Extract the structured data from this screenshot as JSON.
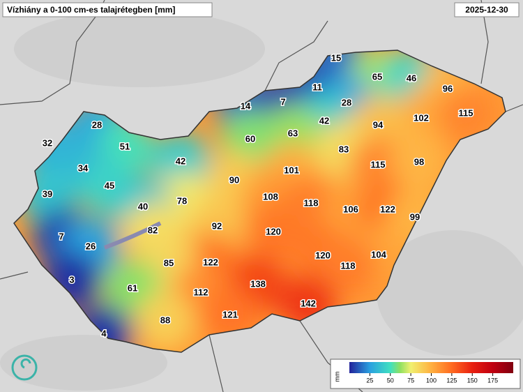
{
  "header": {
    "title": "Vízhiány a 0-100 cm-es talajrétegben [mm]",
    "date": "2025-12-30"
  },
  "map": {
    "points": [
      15,
      65,
      46,
      11,
      96,
      14,
      7,
      28,
      102,
      115,
      42,
      94,
      28,
      63,
      60,
      32,
      51,
      83,
      42,
      115,
      98,
      34,
      101,
      90,
      45,
      39,
      108,
      118,
      78,
      106,
      122,
      40,
      99,
      92,
      82,
      120,
      7,
      26,
      120,
      104,
      122,
      85,
      118,
      3,
      61,
      138,
      112,
      142,
      121,
      88,
      4
    ],
    "legend": {
      "unit": "mm",
      "lim": [
        0,
        200
      ],
      "ticks": [
        25,
        50,
        75,
        100,
        125,
        150,
        175
      ]
    }
  }
}
